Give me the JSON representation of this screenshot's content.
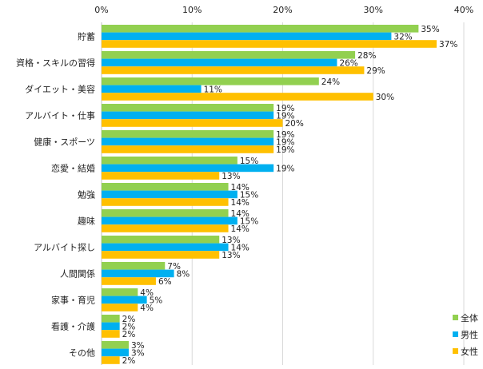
{
  "chart_data": {
    "type": "bar",
    "orientation": "horizontal",
    "categories": [
      "貯蓄",
      "資格・スキルの習得",
      "ダイエット・美容",
      "アルバイト・仕事",
      "健康・スポーツ",
      "恋愛・結婚",
      "勉強",
      "趣味",
      "アルバイト探し",
      "人間関係",
      "家事・育児",
      "看護・介護",
      "その他"
    ],
    "series": [
      {
        "name": "全体",
        "color": "#92d050",
        "values": [
          35,
          28,
          24,
          19,
          19,
          15,
          14,
          14,
          13,
          7,
          4,
          2,
          3
        ]
      },
      {
        "name": "男性",
        "color": "#00b0f0",
        "values": [
          32,
          26,
          11,
          19,
          19,
          19,
          15,
          15,
          14,
          8,
          5,
          2,
          3
        ]
      },
      {
        "name": "女性",
        "color": "#ffc000",
        "values": [
          37,
          29,
          30,
          20,
          19,
          13,
          14,
          14,
          13,
          6,
          4,
          2,
          2
        ]
      }
    ],
    "xlim": [
      0,
      40
    ],
    "ticks": [
      "0%",
      "10%",
      "20%",
      "30%",
      "40%"
    ],
    "tick_values": [
      0,
      10,
      20,
      30,
      40
    ],
    "value_suffix": "%",
    "grid": true,
    "axis_position": "top",
    "legend_position": "bottom-right"
  }
}
